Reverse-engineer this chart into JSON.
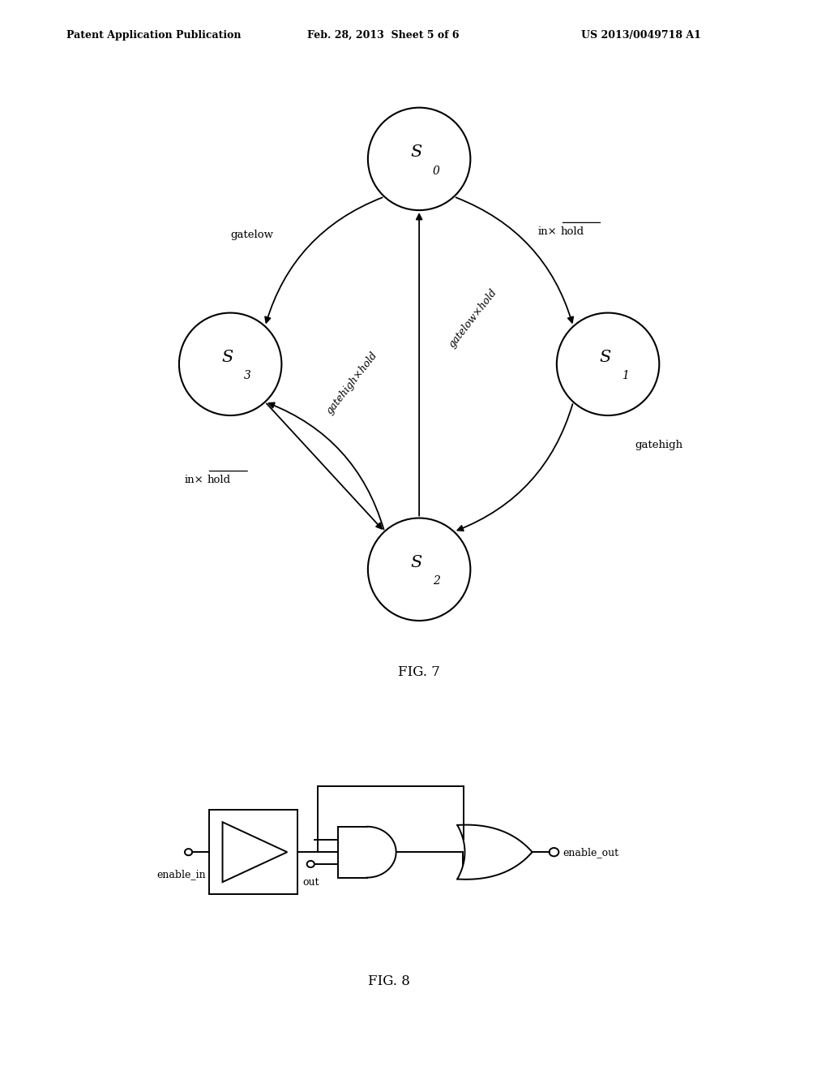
{
  "bg_color": "#ffffff",
  "header_left": "Patent Application Publication",
  "header_center": "Feb. 28, 2013  Sheet 5 of 6",
  "header_right": "US 2013/0049718 A1",
  "fig7_title": "FIG. 7",
  "fig8_title": "FIG. 8"
}
